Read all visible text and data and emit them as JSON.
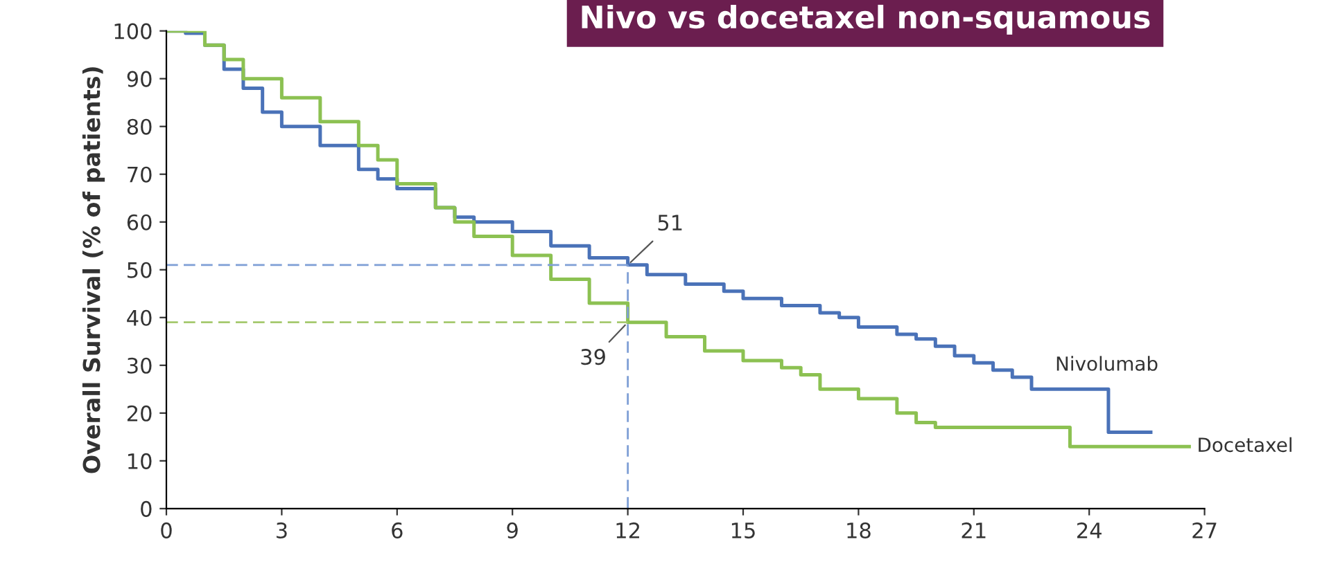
{
  "chart_data": {
    "type": "step",
    "title": "Nivo vs docetaxel non-squamous",
    "ylabel": "Overall Survival (% of patients)",
    "xlim": [
      0,
      27
    ],
    "xticks": [
      0,
      3,
      6,
      9,
      12,
      15,
      18,
      21,
      24,
      27
    ],
    "ylim": [
      0,
      100
    ],
    "yticks": [
      0,
      10,
      20,
      30,
      40,
      50,
      60,
      70,
      80,
      90,
      100
    ],
    "grid": false,
    "legend": false,
    "marker": "none",
    "series": [
      {
        "name": "Nivolumab",
        "color": "#4a72b8",
        "x": [
          0,
          0.5,
          1,
          1.5,
          2,
          2.5,
          3,
          4,
          5,
          5.5,
          6,
          7,
          7.5,
          8,
          9,
          10,
          11,
          12,
          12.5,
          13.5,
          14.5,
          15,
          16,
          17,
          17.5,
          18,
          19,
          19.5,
          20,
          20.5,
          21,
          21.5,
          22,
          22.5,
          23.5,
          24.5,
          25.6
        ],
        "values": [
          100,
          99.5,
          97,
          92,
          88,
          83,
          80,
          76,
          71,
          69,
          67,
          63,
          61,
          60,
          58,
          55,
          52.5,
          51,
          49,
          47,
          45.5,
          44,
          42.5,
          41,
          40,
          38,
          36.5,
          35.5,
          34,
          32,
          30.5,
          29,
          27.5,
          25,
          25,
          16,
          16
        ]
      },
      {
        "name": "Docetaxel",
        "color": "#8cc152",
        "x": [
          0,
          1,
          1.5,
          2,
          3,
          4,
          5,
          5.5,
          6,
          7,
          7.5,
          8,
          9,
          10,
          11,
          12,
          13,
          14,
          15,
          16,
          16.5,
          17,
          18,
          19,
          19.5,
          20,
          23,
          23.5,
          26.6
        ],
        "values": [
          100,
          97,
          94,
          90,
          86,
          81,
          76,
          73,
          68,
          63,
          60,
          57,
          53,
          48,
          43,
          39,
          36,
          33,
          31,
          29.5,
          28,
          25,
          23,
          20,
          18,
          17,
          17,
          13,
          13
        ]
      },
      {
        "type": "line",
        "color": "#7f9fd6",
        "line_style": "dashed",
        "x": [
          0,
          12
        ],
        "values": [
          51,
          51
        ]
      },
      {
        "type": "line",
        "color": "#7f9fd6",
        "line_style": "dashed",
        "x": [
          12,
          12
        ],
        "values": [
          0,
          51
        ]
      },
      {
        "type": "line",
        "color": "#a5c96e",
        "line_style": "dashed",
        "x": [
          0,
          12
        ],
        "values": [
          39,
          39
        ]
      }
    ],
    "annotations": [
      {
        "text": "51",
        "x": 12,
        "y": 51
      },
      {
        "text": "39",
        "x": 12,
        "y": 39
      }
    ]
  }
}
